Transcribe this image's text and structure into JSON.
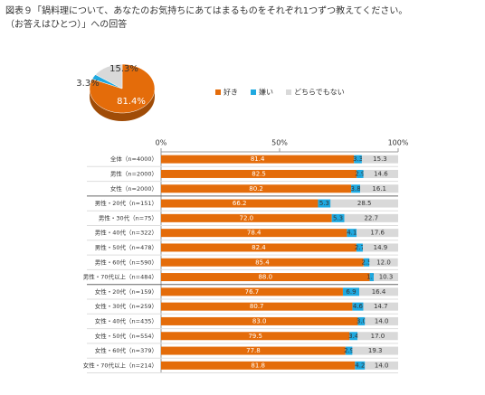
{
  "header": {
    "title_lines": [
      "図表９「鍋料理について、あなたのお気持ちにあてはまるものをそれぞれ1つずつ教えてください。",
      "（お答えはひとつ）」への回答"
    ]
  },
  "chart_data": [
    {
      "type": "pie",
      "categories": [
        "好き",
        "嫌い",
        "どちらでもない"
      ],
      "values": [
        81.4,
        3.3,
        15.3
      ],
      "value_labels": [
        "81.4%",
        "3.3%",
        "15.3%"
      ],
      "colors": [
        "#e46c0a",
        "#1fa9e0",
        "#d9d9d9"
      ],
      "legend": "right"
    },
    {
      "type": "stacked-bar",
      "orientation": "horizontal",
      "categories": [
        "全体（n=4000）",
        "男性（n=2000）",
        "女性（n=2000）",
        "男性・20代（n=151）",
        "男性・30代（n=75）",
        "男性・40代（n=322）",
        "男性・50代（n=478）",
        "男性・60代（n=590）",
        "男性・70代以上（n=484）",
        "女性・20代（n=159）",
        "女性・30代（n=259）",
        "女性・40代（n=435）",
        "女性・50代（n=554）",
        "女性・60代（n=379）",
        "女性・70代以上（n=214）"
      ],
      "series": [
        {
          "name": "好き",
          "color": "#e46c0a",
          "values": [
            81.4,
            82.5,
            80.2,
            66.2,
            72.0,
            78.4,
            82.4,
            85.4,
            88.0,
            76.7,
            80.7,
            83.0,
            79.5,
            77.8,
            81.8
          ],
          "value_labels": [
            "81.4",
            "82.5",
            "80.2",
            "66.2",
            "72.0",
            "78.4",
            "82.4",
            "85.4",
            "88.0",
            "76.7",
            "80.7",
            "83.0",
            "79.5",
            "77.8",
            "81.8"
          ]
        },
        {
          "name": "嫌い",
          "color": "#1fa9e0",
          "values": [
            3.3,
            2.9,
            3.8,
            5.3,
            5.3,
            4.1,
            2.7,
            2.5,
            1.7,
            6.9,
            4.6,
            3.0,
            3.4,
            2.9,
            4.2
          ],
          "value_labels": [
            "3.3",
            "2.9",
            "3.8",
            "5.3",
            "5.3",
            "4.1",
            "2.7",
            "2.5",
            "1.7",
            "6.9",
            "4.6",
            "3.0",
            "3.4",
            "2.9",
            "4.2"
          ]
        },
        {
          "name": "どちらでもない",
          "color": "#d9d9d9",
          "values": [
            15.3,
            14.6,
            16.1,
            28.5,
            22.7,
            17.6,
            14.9,
            12.0,
            10.3,
            16.4,
            14.7,
            14.0,
            17.0,
            19.3,
            14.0
          ],
          "value_labels": [
            "15.3",
            "14.6",
            "16.1",
            "28.5",
            "22.7",
            "17.6",
            "14.9",
            "12.0",
            "10.3",
            "16.4",
            "14.7",
            "14.0",
            "17.0",
            "19.3",
            "14.0"
          ]
        }
      ],
      "xlim": [
        0,
        100
      ],
      "xticks": [
        {
          "value": 0,
          "label": "0%"
        },
        {
          "value": 50,
          "label": "50%"
        },
        {
          "value": 100,
          "label": "100%"
        }
      ]
    }
  ]
}
